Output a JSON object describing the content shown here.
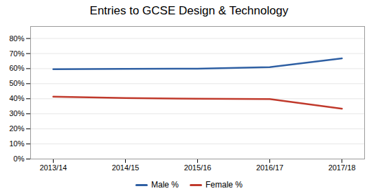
{
  "chart_data": {
    "type": "line",
    "title": "Entries to GCSE Design & Technology",
    "categories": [
      "2013/14",
      "2014/15",
      "2015/16",
      "2016/17",
      "2017/18"
    ],
    "series": [
      {
        "name": "Male %",
        "color": "#2E5FA3",
        "values": [
          0.596,
          0.598,
          0.6,
          0.61,
          0.668
        ]
      },
      {
        "name": "Female %",
        "color": "#C0392B",
        "values": [
          0.414,
          0.405,
          0.4,
          0.398,
          0.334
        ]
      }
    ],
    "ylim": [
      0,
      0.88
    ],
    "yticks": [
      {
        "value": 0.0,
        "label": "0%"
      },
      {
        "value": 0.1,
        "label": "10%"
      },
      {
        "value": 0.2,
        "label": "20%"
      },
      {
        "value": 0.3,
        "label": "30%"
      },
      {
        "value": 0.4,
        "label": "40%"
      },
      {
        "value": 0.5,
        "label": "50%"
      },
      {
        "value": 0.6,
        "label": "60%"
      },
      {
        "value": 0.7,
        "label": "70%"
      },
      {
        "value": 0.8,
        "label": "80%"
      }
    ],
    "grid": true,
    "legend": "bottom"
  }
}
